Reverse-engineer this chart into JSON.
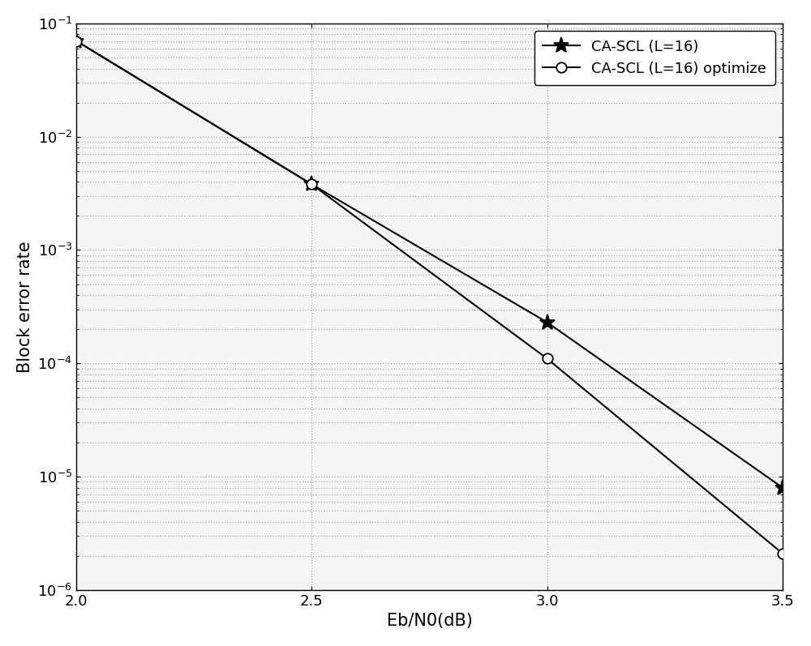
{
  "series": [
    {
      "label": "CA-SCL (L=16)",
      "x": [
        2.0,
        2.5,
        3.0,
        3.5
      ],
      "y": [
        0.07,
        0.0038,
        0.00023,
        8e-06
      ],
      "marker": "*",
      "markersize": 14,
      "color": "#000000",
      "linewidth": 1.5,
      "markerfacecolor": "#000000"
    },
    {
      "label": "CA-SCL (L=16) optimize",
      "x": [
        2.0,
        2.5,
        3.0,
        3.5
      ],
      "y": [
        0.07,
        0.0038,
        0.00011,
        2.1e-06
      ],
      "marker": "o",
      "markersize": 9,
      "color": "#000000",
      "linewidth": 1.5,
      "markerfacecolor": "#ffffff"
    }
  ],
  "xlabel": "Eb/N0(dB)",
  "ylabel": "Block error rate",
  "xlim": [
    2.0,
    3.5
  ],
  "ylim": [
    1e-06,
    0.1
  ],
  "xticks": [
    2.0,
    2.5,
    3.0,
    3.5
  ],
  "grid_color": "#aaaaaa",
  "grid_linestyle": ":",
  "grid_linewidth": 0.9,
  "legend_loc": "upper right",
  "legend_fontsize": 13,
  "axis_fontsize": 15,
  "tick_fontsize": 13,
  "background_color": "#ffffff",
  "plot_bg_color": "#f5f5f5",
  "figure_width": 10.0,
  "figure_height": 7.97
}
